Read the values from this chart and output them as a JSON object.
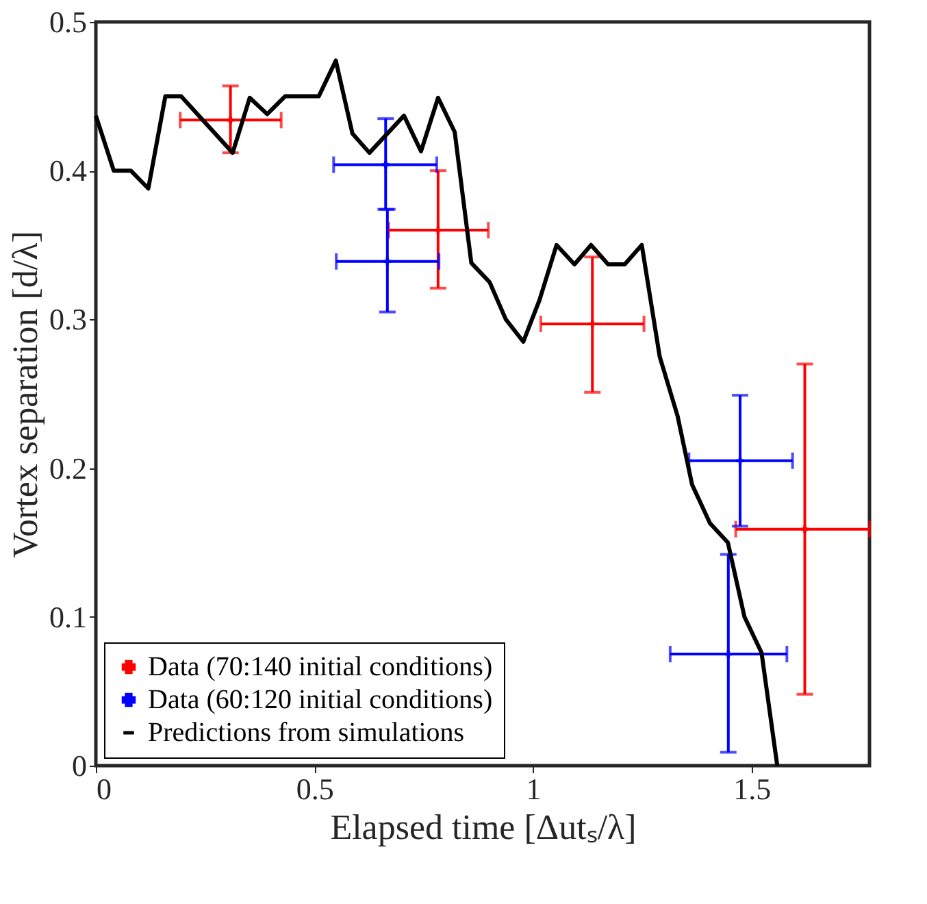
{
  "chart_data": {
    "type": "scatter",
    "xlabel": "Elapsed time [Δutₛ/λ]",
    "ylabel": "Vortex separation [d/λ]",
    "xlim": [
      0,
      1.77
    ],
    "xticks": [
      0,
      0.5,
      1,
      1.5
    ],
    "ylim": [
      0,
      0.5
    ],
    "yticks": [
      0,
      0.1,
      0.2,
      0.3,
      0.4,
      0.5
    ],
    "grid": false,
    "legend": "bottom left",
    "series": [
      {
        "name": "Data (70:140 initial conditions)",
        "marker": "cross",
        "color": "#ff0000",
        "x": [
          0.308,
          0.783,
          1.136,
          1.622
        ],
        "values": [
          0.434,
          0.36,
          0.297,
          0.159
        ],
        "errors": [
          [
            0.412,
            0.457
          ],
          [
            0.321,
            0.4
          ],
          [
            0.251,
            0.342
          ],
          [
            0.048,
            0.27
          ]
        ],
        "xerrors": [
          [
            0.193,
            0.424
          ],
          [
            0.67,
            0.898
          ],
          [
            1.018,
            1.254
          ],
          [
            1.464,
            1.77
          ]
        ]
      },
      {
        "name": "Data (60:120 initial conditions)",
        "marker": "cross",
        "color": "#0000ff",
        "x": [
          0.663,
          0.667,
          1.474,
          1.447
        ],
        "values": [
          0.404,
          0.339,
          0.205,
          0.075
        ],
        "errors": [
          [
            0.374,
            0.435
          ],
          [
            0.305,
            0.374
          ],
          [
            0.161,
            0.249
          ],
          [
            0.009,
            0.142
          ]
        ],
        "xerrors": [
          [
            0.544,
            0.78
          ],
          [
            0.55,
            0.785
          ],
          [
            1.357,
            1.594
          ],
          [
            1.314,
            1.581
          ]
        ]
      },
      {
        "name": "Predictions from simulations",
        "type": "line",
        "marker": "none",
        "line_style": "solid",
        "color": "#000000",
        "x": [
          0,
          0.041,
          0.08,
          0.12,
          0.159,
          0.195,
          0.313,
          0.352,
          0.392,
          0.433,
          0.51,
          0.549,
          0.587,
          0.626,
          0.705,
          0.744,
          0.783,
          0.821,
          0.859,
          0.901,
          0.938,
          0.978,
          1.015,
          1.054,
          1.095,
          1.133,
          1.172,
          1.21,
          1.249,
          1.29,
          1.331,
          1.364,
          1.405,
          1.446,
          1.484,
          1.523,
          1.559
        ],
        "values": [
          0.437,
          0.4,
          0.4,
          0.388,
          0.45,
          0.45,
          0.412,
          0.449,
          0.438,
          0.45,
          0.45,
          0.474,
          0.425,
          0.412,
          0.437,
          0.413,
          0.449,
          0.426,
          0.338,
          0.325,
          0.3,
          0.285,
          0.313,
          0.35,
          0.337,
          0.35,
          0.337,
          0.337,
          0.35,
          0.275,
          0.235,
          0.189,
          0.163,
          0.15,
          0.1,
          0.076,
          0.0
        ]
      }
    ]
  }
}
